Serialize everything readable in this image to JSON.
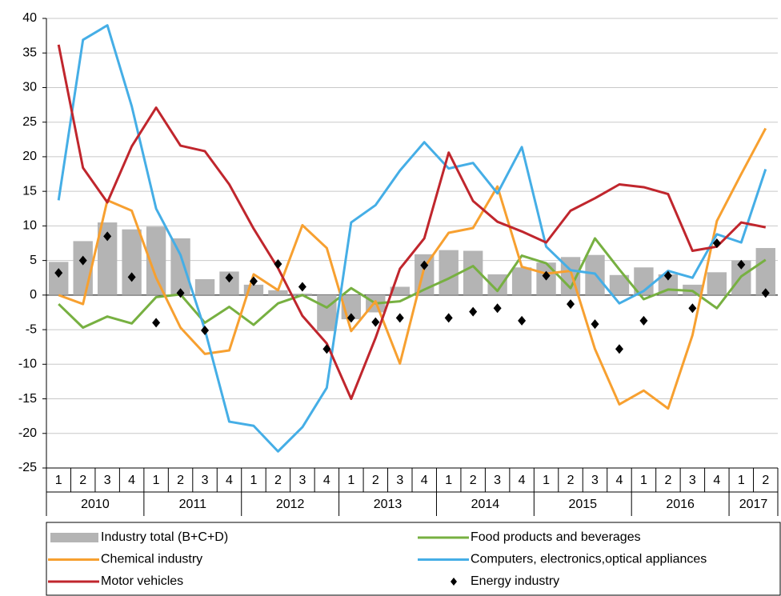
{
  "chart_data": {
    "type": "combo",
    "categories": [
      "1",
      "2",
      "3",
      "4",
      "1",
      "2",
      "3",
      "4",
      "1",
      "2",
      "3",
      "4",
      "1",
      "2",
      "3",
      "4",
      "1",
      "2",
      "3",
      "4",
      "1",
      "2",
      "3",
      "4",
      "1",
      "2",
      "3",
      "4",
      "1",
      "2"
    ],
    "years": [
      "2010",
      "2011",
      "2012",
      "2013",
      "2014",
      "2015",
      "2016",
      "2017"
    ],
    "ylim": [
      -25,
      40
    ],
    "yticks": [
      -25,
      -20,
      -15,
      -10,
      -5,
      0,
      5,
      10,
      15,
      20,
      25,
      30,
      35,
      40
    ],
    "grid": true,
    "series": [
      {
        "name": "Industry total (B+C+D)",
        "kind": "bar",
        "color": "#b4b4b4",
        "values": [
          4.8,
          7.8,
          10.5,
          9.5,
          9.9,
          8.2,
          2.3,
          3.4,
          1.5,
          0.7,
          0.2,
          -5.2,
          -3.5,
          -2.5,
          1.2,
          5.9,
          6.5,
          6.4,
          3.0,
          4.0,
          4.7,
          5.5,
          5.8,
          2.9,
          4.0,
          3.0,
          1.5,
          3.3,
          5.0,
          6.8
        ]
      },
      {
        "name": "Food products and beverages",
        "kind": "line",
        "color": "#77b041",
        "values": [
          -1.3,
          -4.7,
          -3.1,
          -4.1,
          -0.3,
          0.1,
          -4.0,
          -1.7,
          -4.3,
          -1.2,
          0.0,
          -1.8,
          1.0,
          -1.2,
          -0.9,
          0.8,
          2.4,
          4.2,
          0.6,
          5.7,
          4.6,
          1.0,
          8.2,
          3.7,
          -0.6,
          0.8,
          0.6,
          -1.9,
          2.7,
          5.1
        ]
      },
      {
        "name": "Chemical industry",
        "kind": "line",
        "color": "#f7a030",
        "values": [
          0.0,
          -1.3,
          13.7,
          12.2,
          2.5,
          -4.7,
          -8.5,
          -8.0,
          3.0,
          0.7,
          10.1,
          6.8,
          -5.2,
          -0.9,
          -9.9,
          4.0,
          9.0,
          9.7,
          15.7,
          4.1,
          3.1,
          3.5,
          -7.8,
          -15.8,
          -13.8,
          -16.4,
          -5.8,
          10.7,
          17.5,
          24.1
        ]
      },
      {
        "name": "Computers, electronics,optical appliances",
        "kind": "line",
        "color": "#45aee6",
        "values": [
          13.7,
          36.9,
          39.0,
          27.3,
          12.5,
          5.8,
          -5.0,
          -18.3,
          -18.9,
          -22.6,
          -19.1,
          -13.4,
          10.5,
          13.0,
          18.0,
          22.1,
          18.3,
          19.1,
          14.7,
          21.4,
          7.0,
          3.6,
          3.1,
          -1.2,
          0.6,
          3.5,
          2.5,
          8.8,
          7.6,
          18.2
        ]
      },
      {
        "name": "Motor vehicles",
        "kind": "line",
        "color": "#c0262d",
        "values": [
          36.2,
          18.4,
          13.4,
          21.5,
          27.1,
          21.6,
          20.8,
          16.0,
          9.6,
          3.9,
          -3.0,
          -7.0,
          -15.0,
          -6.2,
          3.8,
          8.2,
          20.6,
          13.6,
          10.6,
          9.2,
          7.6,
          12.2,
          14.0,
          16.0,
          15.6,
          14.6,
          6.4,
          7.0,
          10.5,
          9.8
        ]
      },
      {
        "name": "Energy industry",
        "kind": "scatter",
        "color": "#000000",
        "values": [
          3.2,
          5.0,
          8.5,
          2.6,
          -4.0,
          0.3,
          -5.1,
          2.5,
          2.0,
          4.5,
          1.2,
          -7.8,
          -3.3,
          -3.9,
          -3.3,
          4.3,
          -3.3,
          -2.4,
          -1.9,
          -3.7,
          2.8,
          -1.3,
          -4.2,
          -7.8,
          -3.7,
          2.8,
          -1.9,
          7.5,
          4.4,
          0.3
        ]
      }
    ]
  }
}
